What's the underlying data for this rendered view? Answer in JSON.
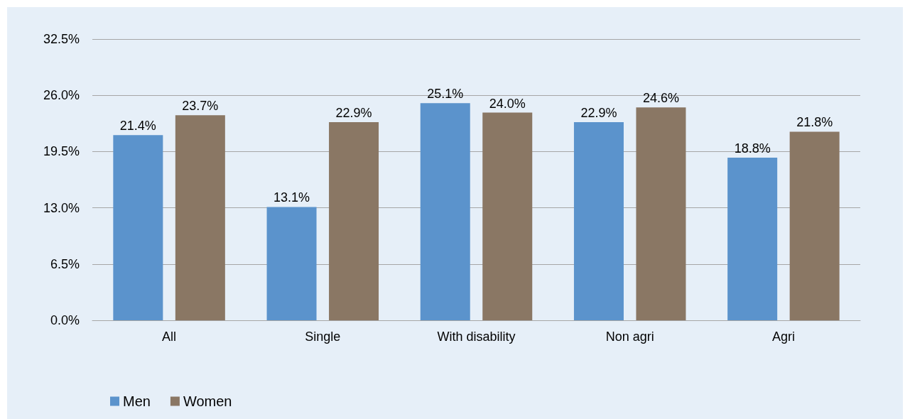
{
  "chart_data": {
    "type": "bar",
    "categories": [
      "All",
      "Single",
      "With disability",
      "Non agri",
      "Agri"
    ],
    "series": [
      {
        "name": "Men",
        "color": "#5b93cc",
        "values": [
          21.4,
          13.1,
          25.1,
          22.9,
          18.8
        ],
        "value_labels": [
          "21.4%",
          "13.1%",
          "25.1%",
          "22.9%",
          "18.8%"
        ]
      },
      {
        "name": "Women",
        "color": "#8a7764",
        "values": [
          23.7,
          22.9,
          24.0,
          24.6,
          21.8
        ],
        "value_labels": [
          "23.7%",
          "22.9%",
          "24.0%",
          "24.6%",
          "21.8%"
        ]
      }
    ],
    "ylim": [
      0,
      32.5
    ],
    "yticks": [
      {
        "value": 0,
        "label": "0.0%"
      },
      {
        "value": 6.5,
        "label": "6.5%"
      },
      {
        "value": 13,
        "label": "13.0%"
      },
      {
        "value": 19.5,
        "label": "19.5%"
      },
      {
        "value": 26,
        "label": "26.0%"
      },
      {
        "value": 32.5,
        "label": "32.5%"
      }
    ],
    "grid": "y",
    "legend": "bottom left"
  }
}
